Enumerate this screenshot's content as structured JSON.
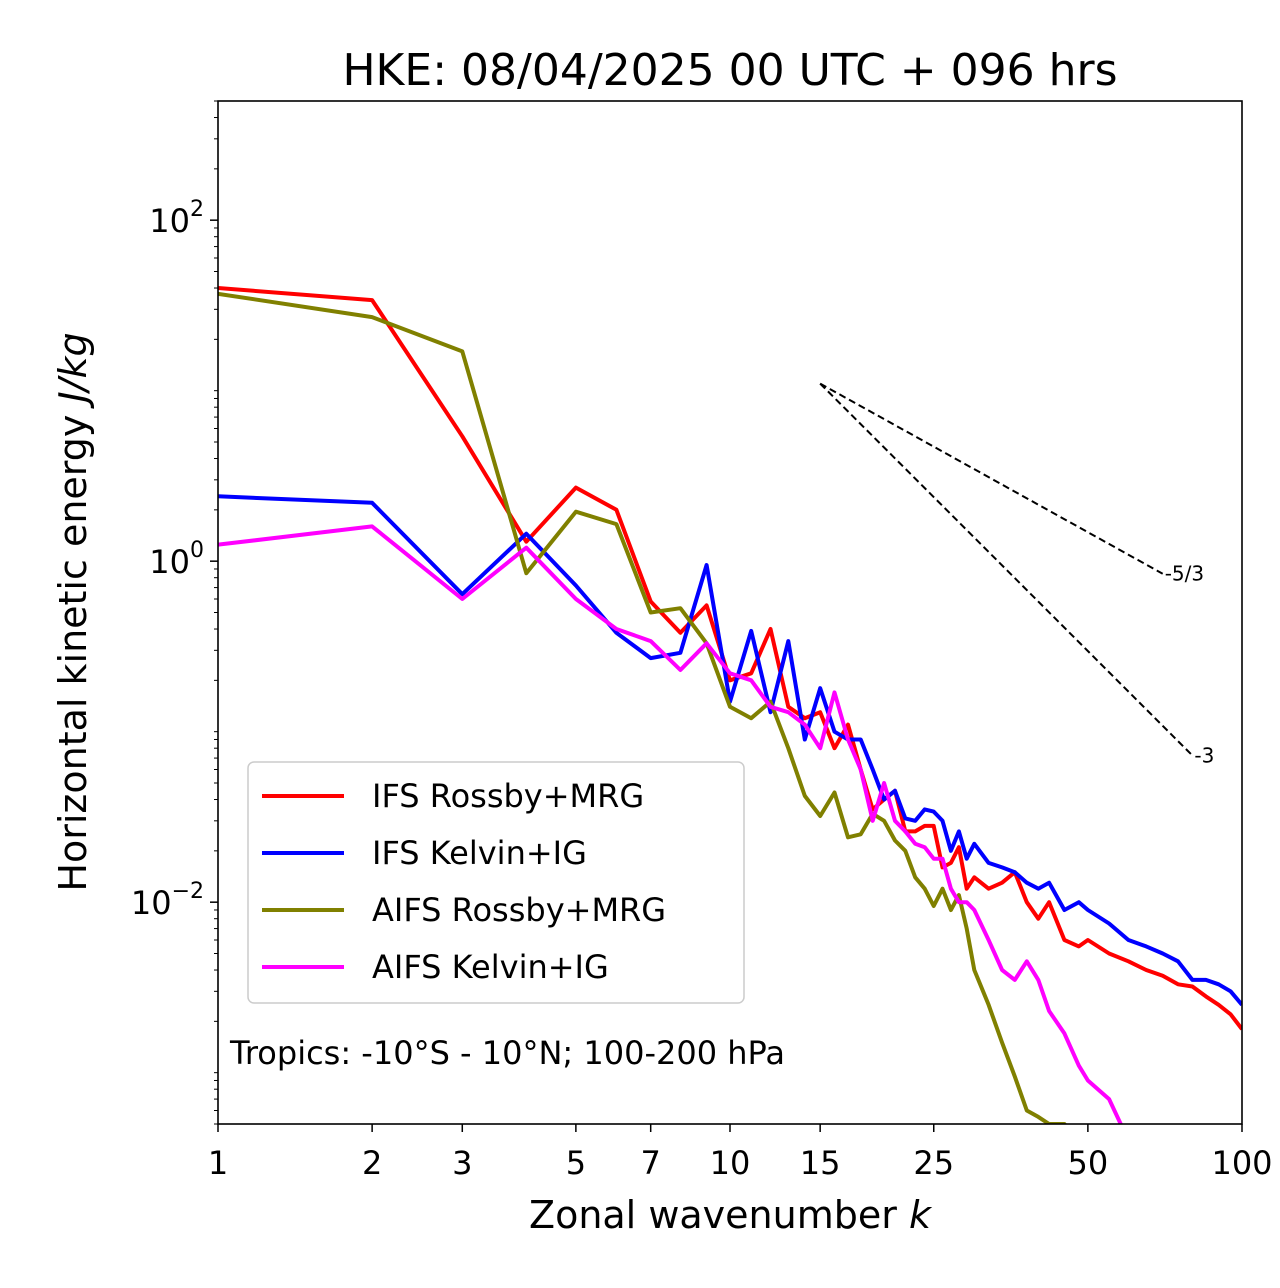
{
  "chart_data": {
    "type": "line",
    "title": "HKE: 08/04/2025 00 UTC + 096 hrs",
    "xlabel": "Zonal wavenumber",
    "xlabel_var": "k",
    "ylabel": "Horizontal kinetic energy",
    "ylabel_unit": "J/kg",
    "xscale": "log",
    "yscale": "log",
    "xlim": [
      1,
      100
    ],
    "ylim": [
      0.0005,
      500
    ],
    "xticks": [
      {
        "value": 1,
        "label": "1"
      },
      {
        "value": 2,
        "label": "2"
      },
      {
        "value": 3,
        "label": "3"
      },
      {
        "value": 5,
        "label": "5"
      },
      {
        "value": 7,
        "label": "7"
      },
      {
        "value": 10,
        "label": "10"
      },
      {
        "value": 15,
        "label": "15"
      },
      {
        "value": 25,
        "label": "25"
      },
      {
        "value": 50,
        "label": "50"
      },
      {
        "value": 100,
        "label": "100"
      }
    ],
    "yticks": [
      {
        "value": 100,
        "base": "10",
        "exp": "2"
      },
      {
        "value": 1,
        "base": "10",
        "exp": "0"
      },
      {
        "value": 0.01,
        "base": "10",
        "exp": "−2"
      }
    ],
    "annotation": "Tropics: -10°S - 10°N; 100-200 hPa",
    "legend_position": "lower-left",
    "reference_slopes": [
      {
        "label": "-5/3",
        "slope": -1.6667,
        "x_start": 15,
        "y_start": 11,
        "x_end": 70
      },
      {
        "label": "-3",
        "slope": -3,
        "x_start": 15,
        "y_start": 11,
        "x_end": 80
      }
    ],
    "series": [
      {
        "name": "IFS Rossby+MRG",
        "color": "#ff0000",
        "x": [
          1,
          2,
          3,
          4,
          5,
          6,
          7,
          8,
          9,
          10,
          11,
          12,
          13,
          14,
          15,
          16,
          17,
          18,
          19,
          20,
          21,
          22,
          23,
          24,
          25,
          26,
          27,
          28,
          29,
          30,
          32,
          34,
          36,
          38,
          40,
          42,
          45,
          48,
          50,
          55,
          60,
          65,
          70,
          75,
          80,
          85,
          90,
          95,
          100
        ],
        "y": [
          40,
          34,
          5.4,
          1.3,
          2.7,
          2,
          0.58,
          0.38,
          0.55,
          0.2,
          0.22,
          0.4,
          0.14,
          0.12,
          0.13,
          0.08,
          0.11,
          0.06,
          0.035,
          0.04,
          0.045,
          0.026,
          0.026,
          0.028,
          0.028,
          0.016,
          0.017,
          0.021,
          0.012,
          0.014,
          0.012,
          0.013,
          0.015,
          0.01,
          0.008,
          0.01,
          0.006,
          0.0055,
          0.006,
          0.005,
          0.0045,
          0.004,
          0.0037,
          0.0033,
          0.0032,
          0.0028,
          0.0025,
          0.0022,
          0.0018
        ]
      },
      {
        "name": "IFS Kelvin+IG",
        "color": "#0000ff",
        "x": [
          1,
          2,
          3,
          4,
          5,
          6,
          7,
          8,
          9,
          10,
          11,
          12,
          13,
          14,
          15,
          16,
          17,
          18,
          19,
          20,
          21,
          22,
          23,
          24,
          25,
          26,
          27,
          28,
          29,
          30,
          32,
          34,
          36,
          38,
          40,
          42,
          45,
          48,
          50,
          55,
          60,
          65,
          70,
          75,
          80,
          85,
          90,
          95,
          100
        ],
        "y": [
          2.4,
          2.2,
          0.64,
          1.45,
          0.72,
          0.38,
          0.27,
          0.29,
          0.95,
          0.15,
          0.39,
          0.13,
          0.34,
          0.09,
          0.18,
          0.1,
          0.09,
          0.09,
          0.06,
          0.04,
          0.045,
          0.031,
          0.03,
          0.035,
          0.034,
          0.03,
          0.02,
          0.026,
          0.018,
          0.022,
          0.017,
          0.016,
          0.015,
          0.013,
          0.012,
          0.013,
          0.009,
          0.01,
          0.009,
          0.0075,
          0.006,
          0.0055,
          0.005,
          0.0045,
          0.0035,
          0.0035,
          0.0033,
          0.003,
          0.0025
        ]
      },
      {
        "name": "AIFS Rossby+MRG",
        "color": "#808000",
        "x": [
          1,
          2,
          3,
          4,
          5,
          6,
          7,
          8,
          9,
          10,
          11,
          12,
          13,
          14,
          15,
          16,
          17,
          18,
          19,
          20,
          21,
          22,
          23,
          24,
          25,
          26,
          27,
          28,
          29,
          30,
          32,
          34,
          36,
          38,
          40,
          42,
          45,
          48,
          50
        ],
        "y": [
          37,
          27,
          17,
          0.85,
          1.95,
          1.65,
          0.5,
          0.53,
          0.33,
          0.14,
          0.12,
          0.15,
          0.08,
          0.042,
          0.032,
          0.044,
          0.024,
          0.025,
          0.033,
          0.03,
          0.023,
          0.02,
          0.014,
          0.012,
          0.0095,
          0.012,
          0.009,
          0.011,
          0.007,
          0.004,
          0.0025,
          0.0015,
          0.00095,
          0.0006,
          0.00055,
          0.0005,
          0.0005,
          0.0004,
          0.0003
        ]
      },
      {
        "name": "AIFS Kelvin+IG",
        "color": "#ff00ff",
        "x": [
          1,
          2,
          3,
          4,
          5,
          6,
          7,
          8,
          9,
          10,
          11,
          12,
          13,
          14,
          15,
          16,
          17,
          18,
          19,
          20,
          21,
          22,
          23,
          24,
          25,
          26,
          27,
          28,
          29,
          30,
          32,
          34,
          36,
          38,
          40,
          42,
          45,
          48,
          50,
          55,
          60
        ],
        "y": [
          1.25,
          1.6,
          0.6,
          1.2,
          0.6,
          0.4,
          0.34,
          0.23,
          0.33,
          0.22,
          0.2,
          0.14,
          0.13,
          0.11,
          0.08,
          0.17,
          0.09,
          0.06,
          0.03,
          0.05,
          0.03,
          0.026,
          0.022,
          0.021,
          0.018,
          0.018,
          0.012,
          0.01,
          0.01,
          0.009,
          0.006,
          0.004,
          0.0035,
          0.0045,
          0.0035,
          0.0023,
          0.0017,
          0.0011,
          0.0009,
          0.0007,
          0.0004
        ]
      }
    ]
  }
}
